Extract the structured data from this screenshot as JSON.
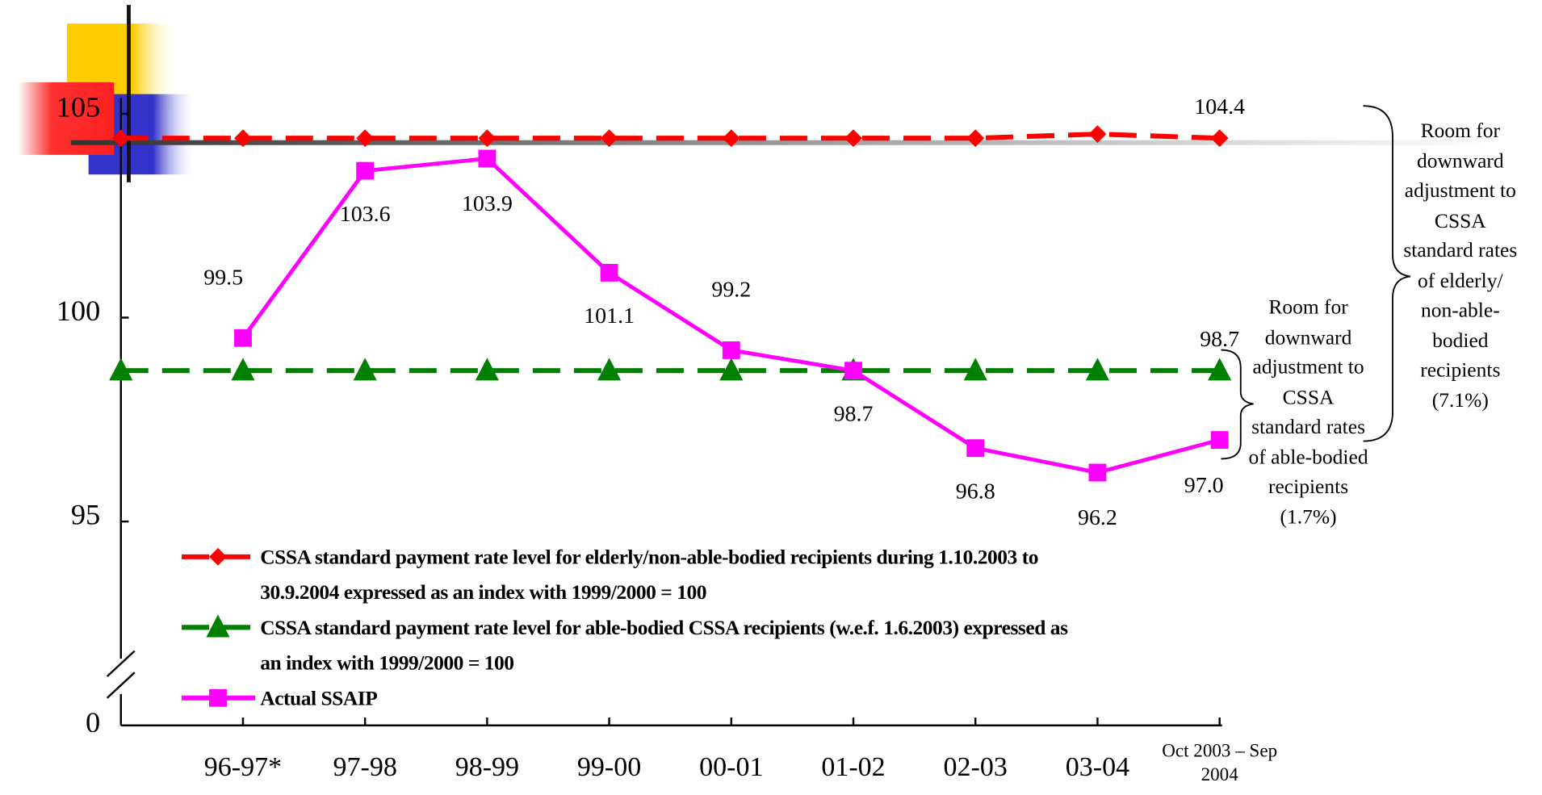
{
  "chart_data": {
    "type": "line",
    "categories": [
      null,
      "96-97*",
      "97-98",
      "98-99",
      "99-00",
      "00-01",
      "01-02",
      "02-03",
      "03-04",
      "Oct 2003 – Sep 2004"
    ],
    "series": [
      {
        "name": "CSSA standard payment rate level for elderly/non-able-bodied recipients during 1.10.2003 to 30.9.2004 expressed as an index with 1999/2000 = 100",
        "color": "#ff0000",
        "marker": "diamond",
        "dashed": true,
        "values": [
          104.4,
          104.4,
          104.4,
          104.4,
          104.4,
          104.4,
          104.4,
          104.4,
          104.5,
          104.4
        ],
        "value_labels": [
          null,
          null,
          null,
          null,
          null,
          null,
          null,
          null,
          null,
          "104.4"
        ]
      },
      {
        "name": "CSSA standard payment rate level for able-bodied CSSA recipients (w.e.f. 1.6.2003) expressed as an index with 1999/2000 = 100",
        "color": "#008000",
        "marker": "triangle",
        "dashed": true,
        "values": [
          98.7,
          98.7,
          98.7,
          98.7,
          98.7,
          98.7,
          98.7,
          98.7,
          98.7,
          98.7
        ],
        "value_labels": [
          null,
          null,
          null,
          null,
          null,
          null,
          null,
          null,
          null,
          "98.7"
        ]
      },
      {
        "name": "Actual SSAIP",
        "color": "#ff00ff",
        "marker": "square",
        "dashed": false,
        "values": [
          null,
          99.5,
          103.6,
          103.9,
          101.1,
          99.2,
          98.7,
          96.8,
          96.2,
          97.0
        ],
        "value_labels": [
          null,
          "99.5",
          "103.6",
          "103.9",
          "101.1",
          "99.2",
          "98.7",
          "96.8",
          "96.2",
          "97.0"
        ]
      }
    ],
    "ylim": [
      90,
      107.5
    ],
    "yticks": [
      0,
      95,
      100,
      105
    ],
    "y_break": true,
    "annotations": [
      "Room for downward adjustment to CSSA standard rates of elderly/ non-able-bodied recipients (7.1%)",
      "Room for downward adjustment to CSSA standard rates of able-bodied recipients (1.7%)"
    ]
  }
}
